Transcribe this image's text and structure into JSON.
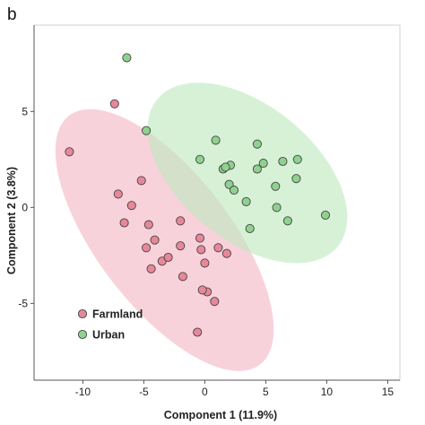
{
  "panel_label": "b",
  "chart_data": {
    "type": "scatter",
    "title": "",
    "xlabel": "Component 1 (11.9%)",
    "ylabel": "Component 2 (3.8%)",
    "xlim": [
      -14,
      16
    ],
    "ylim": [
      -9,
      9.5
    ],
    "xticks": [
      -10,
      -5,
      0,
      5,
      10,
      15
    ],
    "yticks": [
      -5,
      0,
      5
    ],
    "grid": false,
    "legend_position": "bottom-left",
    "series": [
      {
        "name": "Farmland",
        "color": "#e8879a",
        "ellipse_color": "#f3b6c3",
        "ellipse": {
          "cx": -3.3,
          "cy": -1.7,
          "rx": 10.4,
          "ry": 4.3,
          "angle_deg": -34
        },
        "points": [
          [
            -11.1,
            2.9
          ],
          [
            -7.4,
            5.4
          ],
          [
            -5.2,
            1.4
          ],
          [
            -7.1,
            0.7
          ],
          [
            -6.6,
            -0.8
          ],
          [
            -6.0,
            0.1
          ],
          [
            -4.6,
            -0.9
          ],
          [
            -4.8,
            -2.1
          ],
          [
            -4.1,
            -1.7
          ],
          [
            -3.5,
            -2.8
          ],
          [
            -4.4,
            -3.2
          ],
          [
            -3.0,
            -2.6
          ],
          [
            -2.0,
            -2.0
          ],
          [
            -2.0,
            -0.7
          ],
          [
            -1.8,
            -3.6
          ],
          [
            -0.4,
            -1.6
          ],
          [
            -0.3,
            -2.2
          ],
          [
            0.0,
            -2.9
          ],
          [
            1.1,
            -2.1
          ],
          [
            1.8,
            -2.4
          ],
          [
            0.2,
            -4.4
          ],
          [
            -0.2,
            -4.3
          ],
          [
            0.8,
            -4.9
          ],
          [
            -0.6,
            -6.5
          ]
        ]
      },
      {
        "name": "Urban",
        "color": "#8fd18f",
        "ellipse_color": "#bfe8bf",
        "ellipse": {
          "cx": 3.5,
          "cy": 1.8,
          "rx": 8.6,
          "ry": 3.9,
          "angle_deg": -20
        },
        "points": [
          [
            -6.4,
            7.8
          ],
          [
            -4.8,
            4.0
          ],
          [
            0.9,
            3.5
          ],
          [
            -0.4,
            2.5
          ],
          [
            1.5,
            2.0
          ],
          [
            2.1,
            2.2
          ],
          [
            1.7,
            2.1
          ],
          [
            2.0,
            1.2
          ],
          [
            2.4,
            0.9
          ],
          [
            3.4,
            0.3
          ],
          [
            4.3,
            3.3
          ],
          [
            4.3,
            2.0
          ],
          [
            4.8,
            2.3
          ],
          [
            5.8,
            1.1
          ],
          [
            6.4,
            2.4
          ],
          [
            7.6,
            2.5
          ],
          [
            7.5,
            1.5
          ],
          [
            5.9,
            0.0
          ],
          [
            6.8,
            -0.7
          ],
          [
            3.7,
            -1.1
          ],
          [
            9.9,
            -0.4
          ]
        ]
      }
    ]
  }
}
